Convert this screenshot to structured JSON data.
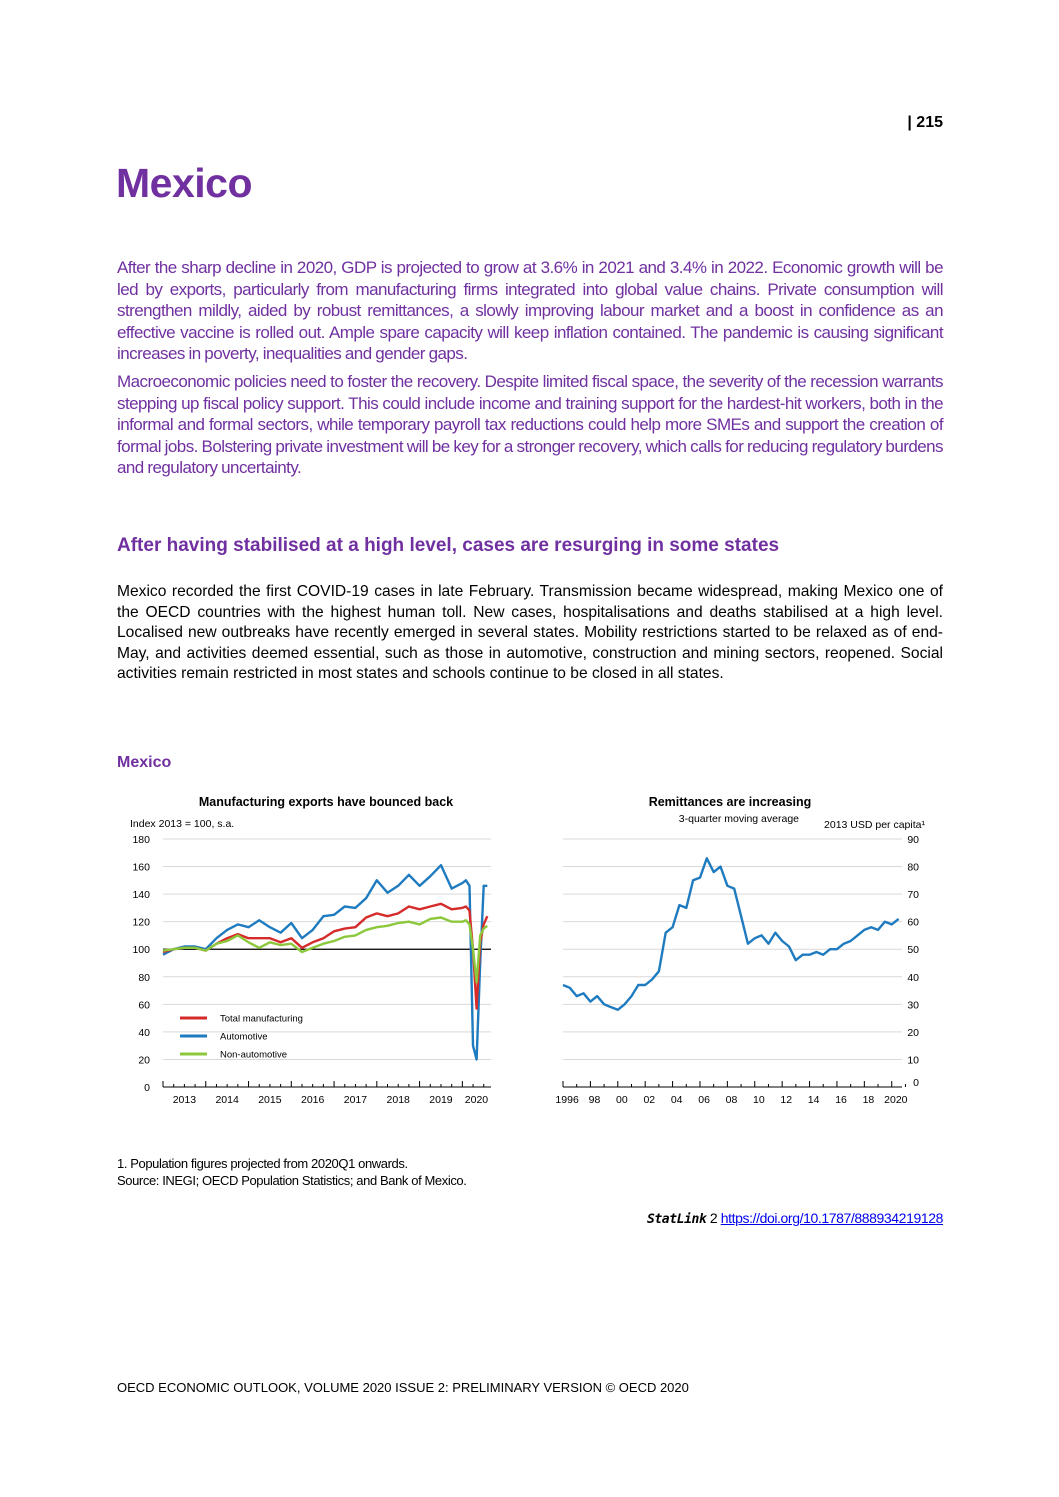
{
  "page_number": "| 215",
  "title": "Mexico",
  "summary": [
    "After the sharp decline in 2020, GDP is projected to grow at 3.6% in 2021 and 3.4% in 2022. Economic growth will be led by exports, particularly from manufacturing firms integrated into global value chains. Private consumption will strengthen mildly, aided by robust remittances, a slowly improving labour market and a boost in confidence as an effective vaccine is rolled out. Ample spare capacity will keep inflation contained. The pandemic is causing significant increases in poverty, inequalities and gender gaps.",
    "Macroeconomic policies need to foster the recovery. Despite limited fiscal space, the severity of the recession warrants stepping up fiscal policy support. This could include income and training support for the hardest-hit workers, both in the informal and formal sectors, while temporary payroll tax reductions could help more SMEs and support the creation of formal jobs. Bolstering private investment will be key for a stronger recovery, which calls for reducing regulatory burdens and regulatory uncertainty."
  ],
  "section_heading": "After having stabilised at a high level, cases are resurging in some states",
  "section_body": "Mexico recorded the first COVID-19 cases in late February. Transmission became widespread, making Mexico one of the OECD countries with the highest human toll. New cases, hospitalisations and deaths stabilised at a high level. Localised new outbreaks have recently emerged in several states. Mobility restrictions started to be relaxed as of end-May, and activities deemed essential, such as those in automotive, construction and mining sectors, reopened. Social activities remain restricted in most states and schools continue to be closed in all states.",
  "figure_title": "Mexico",
  "chart_data": [
    {
      "type": "line",
      "title": "Manufacturing exports have bounced back",
      "ylabel": "Index 2013 = 100, s.a.",
      "ylim": [
        0,
        180
      ],
      "yticks": [
        0,
        20,
        40,
        60,
        80,
        100,
        120,
        140,
        160,
        180
      ],
      "xticks": [
        "2013",
        "2014",
        "2015",
        "2016",
        "2017",
        "2018",
        "2019",
        "2020"
      ],
      "reference_line": 100,
      "grid": true,
      "legend": "bottom-left",
      "x": [
        "2013-01",
        "2013-04",
        "2013-07",
        "2013-10",
        "2014-01",
        "2014-04",
        "2014-07",
        "2014-10",
        "2015-01",
        "2015-04",
        "2015-07",
        "2015-10",
        "2016-01",
        "2016-04",
        "2016-07",
        "2016-10",
        "2017-01",
        "2017-04",
        "2017-07",
        "2017-10",
        "2018-01",
        "2018-04",
        "2018-07",
        "2018-10",
        "2019-01",
        "2019-04",
        "2019-07",
        "2019-10",
        "2020-01",
        "2020-02",
        "2020-03",
        "2020-04",
        "2020-05",
        "2020-06",
        "2020-07",
        "2020-08"
      ],
      "series": [
        {
          "name": "Total manufacturing",
          "color": "#d62b2b",
          "values": [
            98,
            100,
            101,
            101,
            99,
            104,
            108,
            111,
            108,
            108,
            108,
            105,
            108,
            101,
            105,
            108,
            113,
            115,
            116,
            123,
            126,
            124,
            126,
            131,
            129,
            131,
            133,
            129,
            130,
            131,
            128,
            100,
            57,
            105,
            118,
            124
          ]
        },
        {
          "name": "Automotive",
          "color": "#1f7bbf",
          "values": [
            96,
            100,
            102,
            102,
            100,
            108,
            114,
            118,
            116,
            121,
            116,
            112,
            119,
            108,
            114,
            124,
            125,
            131,
            130,
            137,
            150,
            141,
            146,
            154,
            146,
            153,
            161,
            144,
            148,
            150,
            146,
            30,
            20,
            90,
            146,
            146
          ]
        },
        {
          "name": "Non-automotive",
          "color": "#8cc83c",
          "values": [
            99,
            100,
            101,
            101,
            99,
            104,
            106,
            110,
            105,
            101,
            105,
            103,
            104,
            98,
            101,
            104,
            106,
            109,
            110,
            114,
            116,
            117,
            119,
            120,
            118,
            122,
            123,
            120,
            120,
            121,
            118,
            100,
            76,
            110,
            115,
            117
          ]
        }
      ]
    },
    {
      "type": "line",
      "title": "Remittances are increasing",
      "subtitle": "3-quarter moving average",
      "ylabel": "2013 USD per capita¹",
      "ylim": [
        0,
        90
      ],
      "yticks": [
        0,
        10,
        20,
        30,
        40,
        50,
        60,
        70,
        80,
        90
      ],
      "xticks": [
        "1996",
        "98",
        "00",
        "02",
        "04",
        "06",
        "08",
        "10",
        "12",
        "14",
        "16",
        "18",
        "2020"
      ],
      "grid": true,
      "x": [
        1996,
        1996.5,
        1997,
        1997.5,
        1998,
        1998.5,
        1999,
        1999.5,
        2000,
        2000.5,
        2001,
        2001.5,
        2002,
        2002.5,
        2003,
        2003.5,
        2004,
        2004.5,
        2005,
        2005.5,
        2006,
        2006.5,
        2007,
        2007.5,
        2008,
        2008.5,
        2009,
        2009.5,
        2010,
        2010.5,
        2011,
        2011.5,
        2012,
        2012.5,
        2013,
        2013.5,
        2014,
        2014.5,
        2015,
        2015.5,
        2016,
        2016.5,
        2017,
        2017.5,
        2018,
        2018.5,
        2019,
        2019.5,
        2020,
        2020.5
      ],
      "series": [
        {
          "color": "#1f7bbf",
          "values": [
            37,
            36,
            33,
            34,
            31,
            33,
            30,
            29,
            28,
            30,
            33,
            37,
            37,
            39,
            42,
            56,
            58,
            66,
            65,
            75,
            76,
            83,
            78,
            80,
            73,
            72,
            62,
            52,
            54,
            55,
            52,
            56,
            53,
            51,
            46,
            48,
            48,
            49,
            48,
            50,
            50,
            52,
            53,
            55,
            57,
            58,
            57,
            60,
            59,
            61
          ]
        }
      ]
    }
  ],
  "notes": [
    "1. Population figures projected from 2020Q1 onwards.",
    "Source: INEGI; OECD Population Statistics; and Bank of Mexico."
  ],
  "statlink": {
    "label": "StatLink",
    "symbol": "2",
    "url": "https://doi.org/10.1787/888934219128"
  },
  "footer": "OECD ECONOMIC OUTLOOK, VOLUME 2020 ISSUE 2: PRELIMINARY VERSION © OECD 2020"
}
